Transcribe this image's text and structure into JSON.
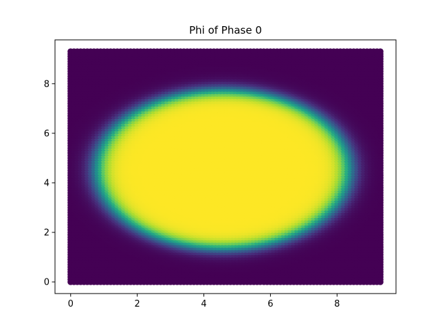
{
  "chart_data": {
    "type": "scatter",
    "title": "Phi of Phase 0",
    "xlabel": "",
    "ylabel": "",
    "xlim": [
      -0.47,
      9.77
    ],
    "ylim": [
      -0.47,
      9.77
    ],
    "x_ticks": [
      0,
      2,
      4,
      6,
      8
    ],
    "y_ticks": [
      0,
      2,
      4,
      6,
      8
    ],
    "x_tick_labels": [
      "0",
      "2",
      "4",
      "6",
      "8"
    ],
    "y_tick_labels": [
      "0",
      "2",
      "4",
      "6",
      "8"
    ],
    "grid": false,
    "legend": "none",
    "colormap": "viridis",
    "color_low": "#440154",
    "color_high": "#fde725",
    "grid_points": {
      "x_start": 0.0,
      "x_end": 9.3,
      "x_step": 0.1,
      "y_start": 0.0,
      "y_end": 9.3,
      "y_step": 0.1
    },
    "field": {
      "shape": "ellipse",
      "center": [
        4.6,
        4.6
      ],
      "semi_axis_x": 3.8,
      "semi_axis_y": 3.2,
      "value_inside": 1,
      "value_outside": 0,
      "interface_width": 0.9
    }
  }
}
